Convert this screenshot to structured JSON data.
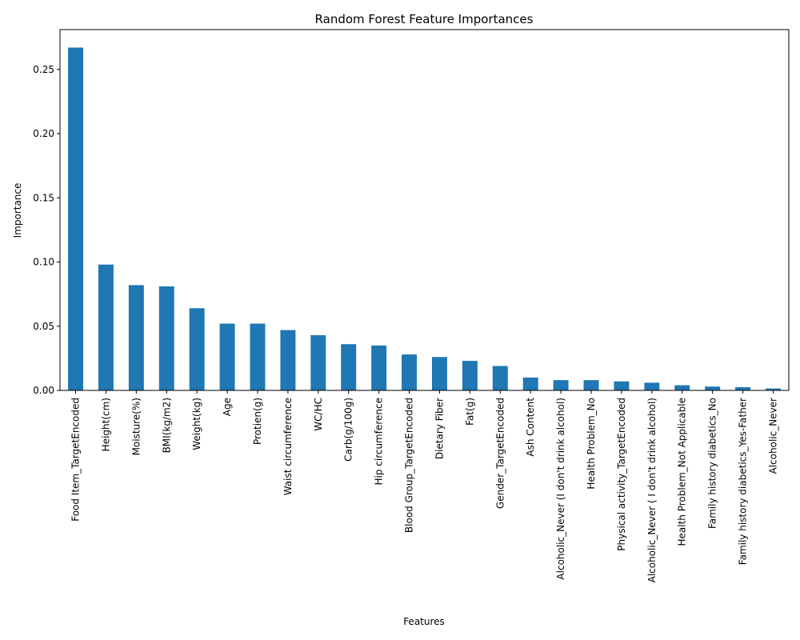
{
  "chart_data": {
    "type": "bar",
    "title": "Random Forest Feature Importances",
    "xlabel": "Features",
    "ylabel": "Importance",
    "ylim": [
      0,
      0.281
    ],
    "yticks": [
      0.0,
      0.05,
      0.1,
      0.15,
      0.2,
      0.25
    ],
    "ytick_labels": [
      "0.00",
      "0.05",
      "0.10",
      "0.15",
      "0.20",
      "0.25"
    ],
    "grid": false,
    "legend": "none",
    "bar_color": "#1f77b4",
    "categories": [
      "Food Item_TargetEncoded",
      "Height(cm)",
      "Moisture(%)",
      "BMI(kg/m2)",
      "Weight(kg)",
      "Age",
      "Protien(g)",
      "Waist circumference",
      "WC/HC",
      "Carb(g/100g)",
      "Hip circumference",
      "Blood Group_TargetEncoded",
      "Dietary Fiber",
      "Fat(g)",
      "Gender_TargetEncoded",
      "Ash Content",
      "Alcoholic_Never (I don't drink alcohol)",
      "Health Problem_No",
      "Physical activity_TargetEncoded",
      "Alcoholic_Never ( I don't drink alcohol)",
      "Health Problem_Not Applicable",
      "Family history diabetics_No",
      "Family history diabetics_Yes-Father",
      "Alcoholic_Never"
    ],
    "values": [
      0.267,
      0.098,
      0.082,
      0.081,
      0.064,
      0.052,
      0.052,
      0.047,
      0.043,
      0.036,
      0.035,
      0.028,
      0.026,
      0.023,
      0.019,
      0.01,
      0.008,
      0.008,
      0.007,
      0.006,
      0.004,
      0.003,
      0.0025,
      0.0015
    ]
  }
}
